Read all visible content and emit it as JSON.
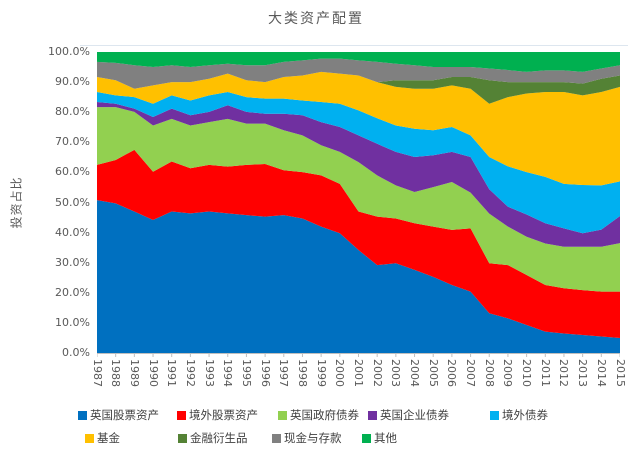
{
  "chart_data": {
    "type": "area",
    "stacking": "percent",
    "title": "大类资产配置",
    "ylabel": "投资占比",
    "ylim": [
      0,
      100
    ],
    "grid": false,
    "legend_position": "bottom",
    "text_color": "#595959",
    "axis_color": "#BFBFBF",
    "yticks": [
      "0.0%",
      "10.0%",
      "20.0%",
      "30.0%",
      "40.0%",
      "50.0%",
      "60.0%",
      "70.0%",
      "80.0%",
      "90.0%",
      "100.0%"
    ],
    "x_categories": [
      "1987",
      "1988",
      "1989",
      "1990",
      "1991",
      "1992",
      "1993",
      "1994",
      "1995",
      "1996",
      "1997",
      "1998",
      "1999",
      "2000",
      "2001",
      "2002",
      "2003",
      "2004",
      "2005",
      "2006",
      "2007",
      "2008",
      "2009",
      "2010",
      "2011",
      "2012",
      "2013",
      "2014",
      "2015"
    ],
    "series": [
      {
        "name": "英国股票资产",
        "color": "#0070C0",
        "values": [
          50.8,
          49.7,
          47.0,
          44.2,
          47.0,
          46.4,
          47.0,
          46.4,
          45.8,
          45.3,
          45.8,
          44.7,
          42.0,
          39.8,
          34.2,
          29.2,
          29.8,
          27.6,
          25.3,
          22.6,
          20.4,
          13.2,
          11.5,
          9.3,
          7.1,
          6.5,
          6.0,
          5.5,
          5.0
        ]
      },
      {
        "name": "境外股票资产",
        "color": "#FF0000",
        "values": [
          11.7,
          14.4,
          20.5,
          16.0,
          16.6,
          15.0,
          15.5,
          15.5,
          16.7,
          17.5,
          14.9,
          15.4,
          17.0,
          16.4,
          12.8,
          16.1,
          14.9,
          15.5,
          16.7,
          18.3,
          21.0,
          16.6,
          17.7,
          16.6,
          15.5,
          15.0,
          14.9,
          14.9,
          15.4
        ]
      },
      {
        "name": "英国政府债券",
        "color": "#92D050",
        "values": [
          19.2,
          17.6,
          12.6,
          15.4,
          14.2,
          14.2,
          14.2,
          15.9,
          13.7,
          13.4,
          13.3,
          12.2,
          10.0,
          10.6,
          16.4,
          13.7,
          11.0,
          10.4,
          13.1,
          15.9,
          11.9,
          16.5,
          12.8,
          12.7,
          13.8,
          13.8,
          14.4,
          14.9,
          16.1
        ]
      },
      {
        "name": "英国企业债券",
        "color": "#7030A0",
        "values": [
          1.7,
          1.1,
          1.1,
          2.8,
          3.4,
          3.4,
          3.4,
          4.5,
          3.9,
          3.3,
          5.5,
          6.7,
          7.7,
          8.3,
          8.9,
          10.5,
          11.1,
          11.6,
          10.6,
          10.0,
          11.8,
          8.1,
          6.6,
          7.4,
          6.7,
          6.1,
          4.5,
          5.7,
          9.0
        ]
      },
      {
        "name": "境外债券",
        "color": "#00B0F0",
        "values": [
          3.3,
          2.8,
          3.8,
          4.4,
          4.4,
          4.9,
          5.5,
          4.4,
          4.9,
          5.0,
          5.0,
          4.9,
          6.7,
          7.7,
          8.3,
          8.5,
          8.8,
          9.4,
          8.3,
          8.3,
          7.2,
          10.7,
          13.4,
          14.1,
          15.4,
          14.8,
          16.0,
          14.7,
          11.5
        ]
      },
      {
        "name": "基金",
        "color": "#FFC000",
        "values": [
          5.0,
          5.0,
          2.8,
          6.1,
          4.4,
          6.1,
          5.5,
          6.1,
          5.6,
          5.5,
          7.2,
          8.3,
          10.0,
          10.0,
          11.6,
          12.0,
          12.8,
          13.3,
          13.8,
          13.8,
          15.5,
          17.7,
          23.0,
          26.1,
          28.2,
          30.5,
          29.8,
          31.0,
          31.4
        ]
      },
      {
        "name": "金融衍生品",
        "color": "#548235",
        "values": [
          0,
          0,
          0,
          0,
          0,
          0,
          0,
          0,
          0,
          0,
          0,
          0,
          0,
          0,
          0,
          0,
          2.2,
          2.8,
          2.8,
          2.8,
          3.9,
          7.8,
          5.0,
          3.8,
          3.3,
          3.3,
          3.9,
          4.4,
          3.8
        ]
      },
      {
        "name": "现金与存款",
        "color": "#808080",
        "values": [
          5.0,
          5.8,
          7.8,
          6.1,
          5.6,
          5.0,
          4.5,
          3.3,
          5.0,
          5.6,
          5.0,
          5.0,
          4.4,
          5.0,
          5.0,
          6.7,
          5.5,
          5.0,
          4.4,
          3.3,
          3.3,
          3.9,
          4.0,
          3.4,
          3.9,
          3.9,
          3.9,
          3.4,
          3.4
        ]
      },
      {
        "name": "其他",
        "color": "#00B050",
        "values": [
          3.3,
          3.6,
          4.4,
          5.0,
          4.4,
          5.0,
          4.4,
          3.9,
          4.4,
          4.4,
          3.3,
          2.8,
          2.2,
          2.2,
          2.8,
          3.3,
          3.9,
          4.4,
          5.0,
          5.0,
          5.0,
          5.5,
          6.0,
          6.6,
          6.1,
          6.1,
          6.6,
          5.5,
          4.4
        ]
      }
    ],
    "legend_row_split": 5
  }
}
